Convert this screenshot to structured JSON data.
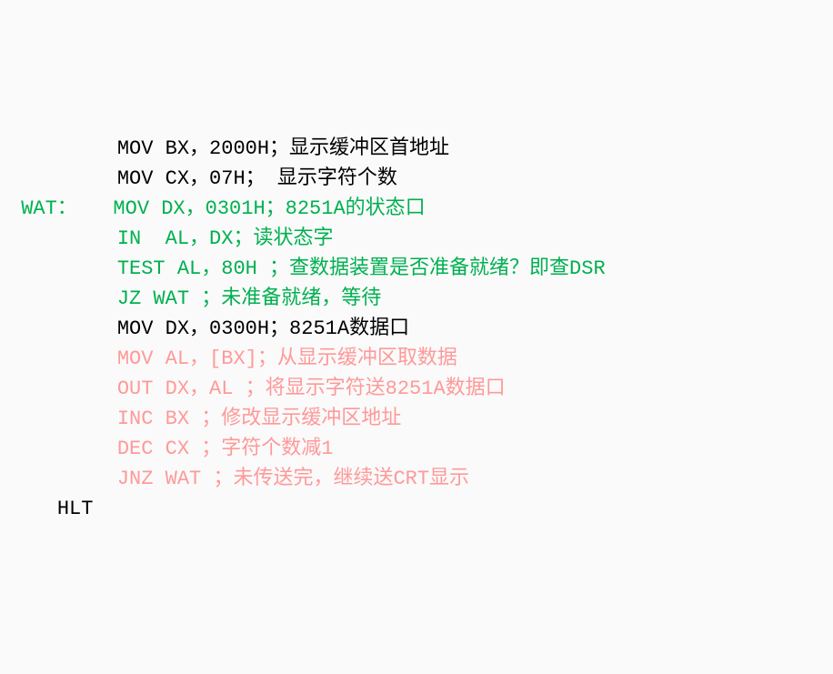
{
  "colors": {
    "black": "#000000",
    "green": "#00b050",
    "pink": "#ff9999",
    "background": "#fafafa"
  },
  "typography": {
    "font_family": "SimSun, 宋体, Courier New, monospace",
    "font_size": 22,
    "line_height": 1.5
  },
  "lines": [
    {
      "label": "",
      "label_color": "black",
      "indent": "         ",
      "text": "MOV BX，2000H；显示缓冲区首地址",
      "color": "black"
    },
    {
      "label": "",
      "label_color": "black",
      "indent": "         ",
      "text": "MOV CX，07H； 显示字符个数",
      "color": "black"
    },
    {
      "label": " WAT：   ",
      "label_color": "green",
      "indent": "",
      "text": "MOV DX，0301H；8251A的状态口",
      "color": "green"
    },
    {
      "label": "",
      "label_color": "green",
      "indent": "         ",
      "text": "IN  AL，DX；读状态字",
      "color": "green"
    },
    {
      "label": "",
      "label_color": "green",
      "indent": "         ",
      "text": "TEST AL，80H ；查数据装置是否准备就绪？即查DSR",
      "color": "green"
    },
    {
      "label": "",
      "label_color": "green",
      "indent": "         ",
      "text": "JZ WAT ；未准备就绪，等待",
      "color": "green"
    },
    {
      "label": "",
      "label_color": "black",
      "indent": "         ",
      "text": "MOV DX，0300H；8251A数据口",
      "color": "black"
    },
    {
      "label": "",
      "label_color": "pink",
      "indent": "         ",
      "text": "MOV AL，[BX]；从显示缓冲区取数据",
      "color": "pink"
    },
    {
      "label": "",
      "label_color": "pink",
      "indent": "         ",
      "text": "OUT DX，AL ；将显示字符送8251A数据口",
      "color": "pink"
    },
    {
      "label": "",
      "label_color": "pink",
      "indent": "         ",
      "text": "INC BX ；修改显示缓冲区地址",
      "color": "pink"
    },
    {
      "label": "",
      "label_color": "pink",
      "indent": "         ",
      "text": "DEC CX ；字符个数减1",
      "color": "pink"
    },
    {
      "label": "",
      "label_color": "pink",
      "indent": "         ",
      "text": "JNZ WAT ；未传送完，继续送CRT显示",
      "color": "pink"
    },
    {
      "label": "",
      "label_color": "black",
      "indent": "    ",
      "text": "HLT",
      "color": "black"
    }
  ]
}
